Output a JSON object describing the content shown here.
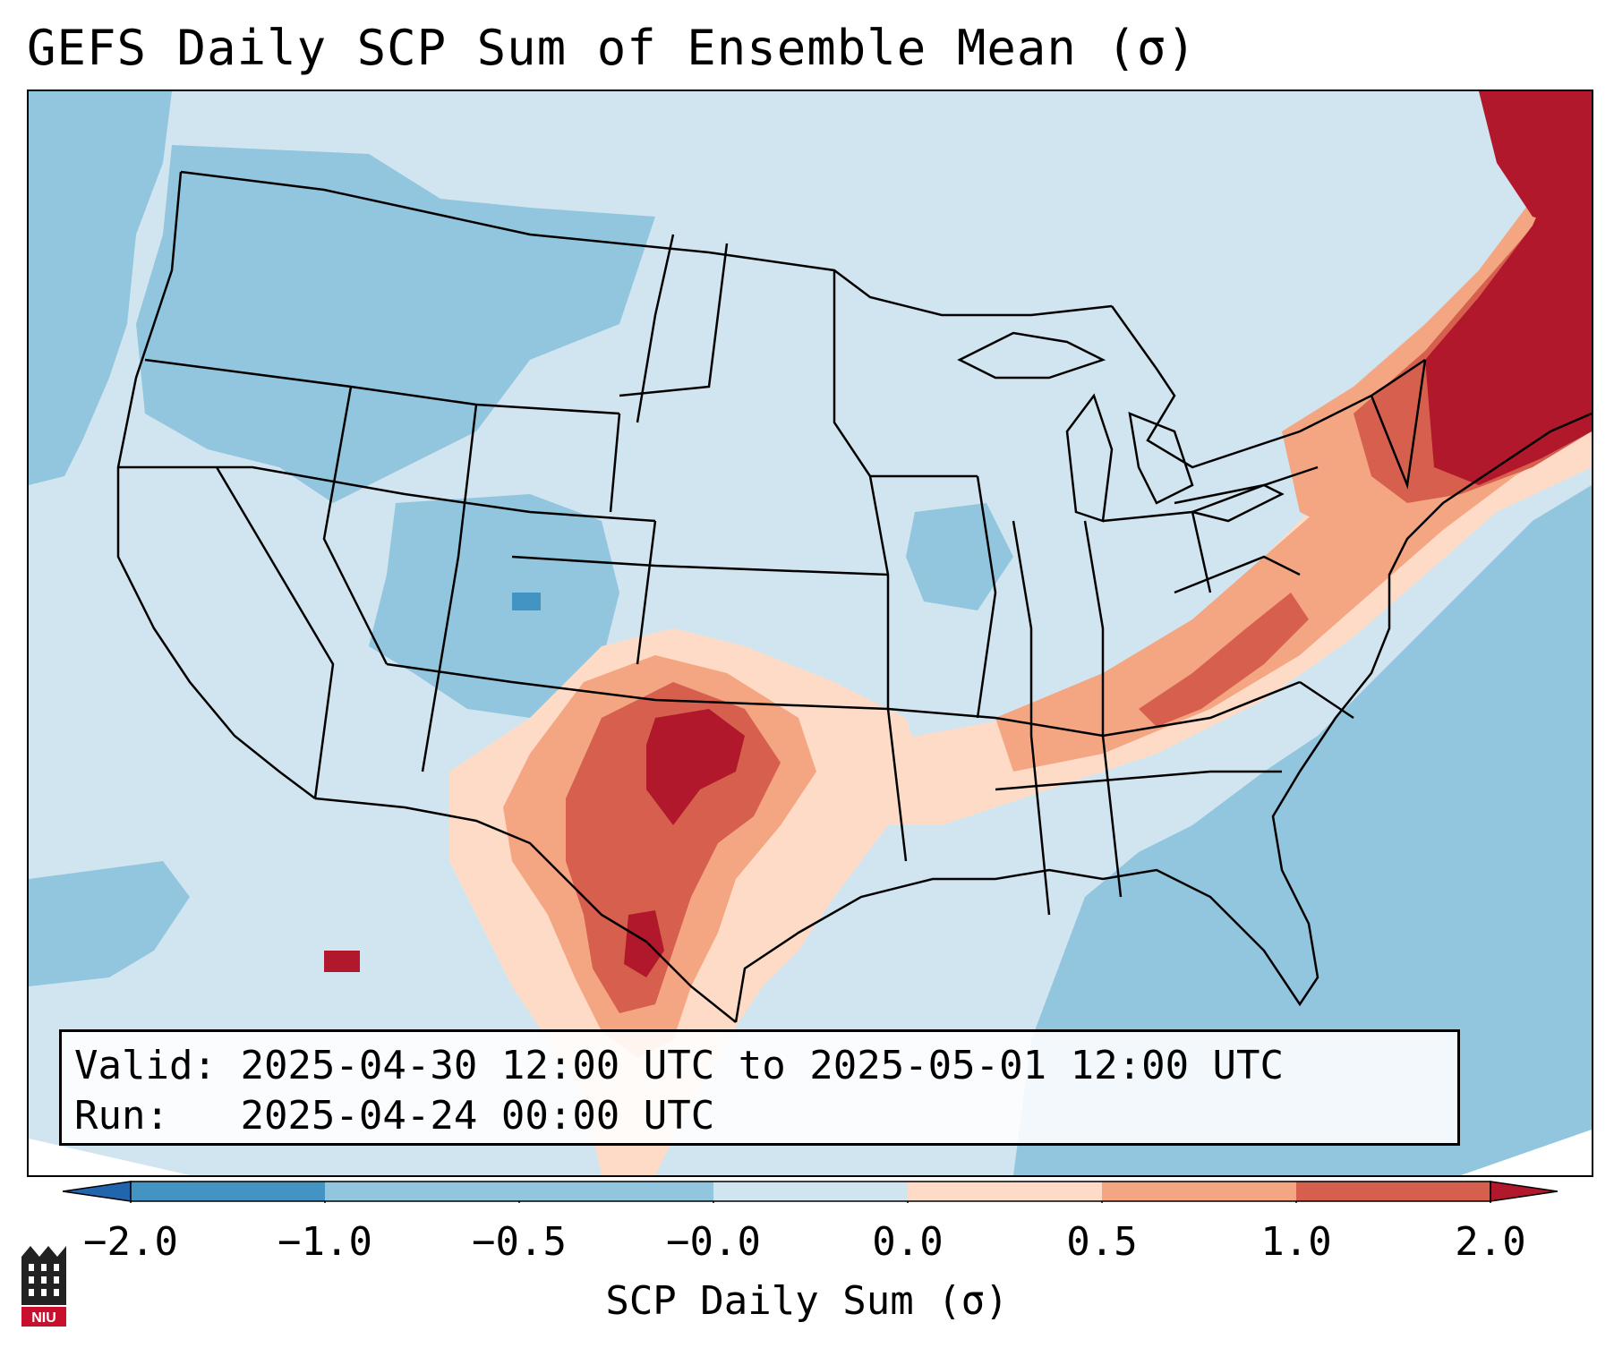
{
  "title": "GEFS Daily SCP Sum of Ensemble Mean (σ)",
  "info": {
    "valid_label": "Valid:",
    "valid_value": "2025-04-30 12:00 UTC to 2025-05-01 12:00 UTC",
    "run_label": "Run:",
    "run_value": "2025-04-24 00:00 UTC"
  },
  "colorbar": {
    "label": "SCP Daily Sum (σ)",
    "ticks": [
      "−2.0",
      "−1.0",
      "−0.5",
      "−0.0",
      "0.0",
      "0.5",
      "1.0",
      "2.0"
    ],
    "bins": [
      {
        "range": "< -2.0",
        "color": "#2166ac"
      },
      {
        "range": "-2.0 to -1.0",
        "color": "#4393c3"
      },
      {
        "range": "-1.0 to -0.5",
        "color": "#92c5de"
      },
      {
        "range": "-0.5 to -0.0",
        "color": "#92c5de"
      },
      {
        "range": "-0.0 to 0.0",
        "color": "#d1e5f0"
      },
      {
        "range": "0.0 to 0.5",
        "color": "#fddbc7"
      },
      {
        "range": "0.5 to 1.0",
        "color": "#f4a582"
      },
      {
        "range": "1.0 to 2.0",
        "color": "#d6604d"
      },
      {
        "range": "> 2.0",
        "color": "#b2182b"
      }
    ]
  },
  "map": {
    "background_anomaly_color": "#d1e5f0",
    "ocean_anomaly_color": "#92c5de",
    "outline_color": "#000000",
    "regions": [
      {
        "name": "southern-plains-maximum",
        "level": "> 2.0",
        "color": "#b2182b"
      },
      {
        "name": "south-texas-maximum",
        "level": "> 2.0",
        "color": "#b2182b"
      },
      {
        "name": "new-england-maximum",
        "level": "> 2.0",
        "color": "#b2182b"
      },
      {
        "name": "ohio-valley-band",
        "level": "0.5 to 1.0",
        "color": "#f4a582"
      },
      {
        "name": "northwest-negative",
        "level": "-1.0 to -0.5",
        "color": "#92c5de"
      },
      {
        "name": "gulf-atlantic-negative",
        "level": "-1.0 to -0.5",
        "color": "#92c5de"
      }
    ]
  },
  "logo": {
    "text": "NIU",
    "color": "#c8102e"
  }
}
